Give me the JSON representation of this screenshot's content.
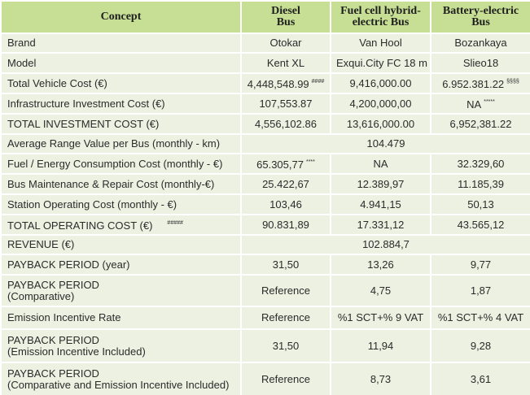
{
  "header": {
    "columns": [
      [
        "Concept"
      ],
      [
        "Diesel",
        "Bus"
      ],
      [
        "Fuel cell hybrid-",
        "electric Bus"
      ],
      [
        "Battery-electric",
        "Bus"
      ]
    ]
  },
  "rows": [
    {
      "label": [
        "Brand"
      ],
      "values": [
        "Otokar",
        "Van Hool",
        "Bozankaya"
      ]
    },
    {
      "label": [
        "Model"
      ],
      "values": [
        "Kent XL",
        "Exqui.City FC 18 m",
        "Slieo18"
      ]
    },
    {
      "label": [
        "Total Vehicle Cost (€)"
      ],
      "values": [
        {
          "text": "4,448,548.99",
          "sup": "####"
        },
        "9,416,000.00",
        {
          "text": "6.952.381.22",
          "sup": "§§§§"
        }
      ]
    },
    {
      "label": [
        "Infrastructure Investment Cost (€)"
      ],
      "values": [
        "107,553.87",
        "4,200,000,00",
        {
          "text": "NA",
          "sup": "*****"
        }
      ]
    },
    {
      "label": [
        "TOTAL INVESTMENT COST (€)"
      ],
      "values": [
        "4,556,102.86",
        "13,616,000.00",
        "6,952,381.22"
      ]
    },
    {
      "label": [
        "Average Range Value per Bus (monthly - km)"
      ],
      "value": "104.479"
    },
    {
      "label": [
        "Fuel / Energy Consumption Cost (monthly - €)"
      ],
      "values": [
        {
          "text": "65.305,77",
          "sup": "****"
        },
        "NA",
        "32.329,60"
      ]
    },
    {
      "label": [
        "Bus Maintenance & Repair Cost (monthly-€)"
      ],
      "values": [
        "25.422,67",
        "12.389,97",
        "11.185,39"
      ]
    },
    {
      "label": [
        "Station Operating Cost (monthly - €)"
      ],
      "values": [
        "103,46",
        "4.941,15",
        "50,13"
      ]
    },
    {
      "label": [
        "TOTAL OPERATING COST (€)"
      ],
      "label_sup": "#####",
      "values": [
        "90.831,89",
        "17.331,12",
        "43.565,12"
      ]
    },
    {
      "label": [
        "REVENUE (€)"
      ],
      "value": "102.884,7"
    },
    {
      "label": [
        "PAYBACK PERIOD  (year)"
      ],
      "values": [
        "31,50",
        "13,26",
        "9,77"
      ]
    },
    {
      "label": [
        "PAYBACK PERIOD",
        "(Comparative)"
      ],
      "values": [
        "Reference",
        "4,75",
        "1,87"
      ]
    },
    {
      "label": [
        "Emission Incentive Rate"
      ],
      "values": [
        "Reference",
        "%1 SCT+% 9 VAT",
        "%1 SCT+% 4 VAT"
      ]
    },
    {
      "label": [
        "PAYBACK PERIOD",
        "(Emission Incentive Included)"
      ],
      "values": [
        "31,50",
        "11,94",
        "9,28"
      ]
    },
    {
      "label": [
        "PAYBACK PERIOD",
        "(Comparative and Emission Incentive Included)"
      ],
      "values": [
        "Reference",
        "8,73",
        "3,61"
      ]
    }
  ]
}
